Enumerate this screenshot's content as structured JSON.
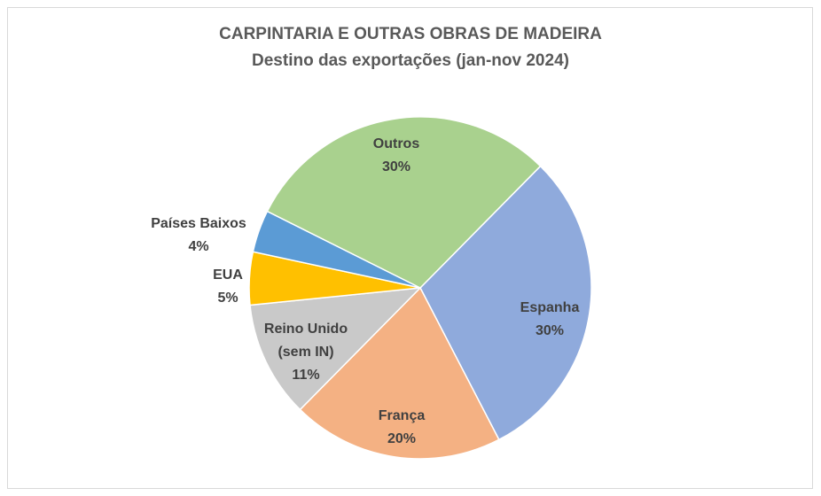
{
  "chart_data": {
    "type": "pie",
    "title": "CARPINTARIA E OUTRAS OBRAS DE MADEIRA",
    "subtitle": "Destino das exportações (jan-nov 2024)",
    "categories": [
      "Espanha",
      "França",
      "Reino Unido (sem IN)",
      "EUA",
      "Países Baixos",
      "Outros"
    ],
    "values": [
      30,
      20,
      11,
      5,
      4,
      30
    ],
    "value_labels": [
      "30%",
      "20%",
      "11%",
      "5%",
      "4%",
      "30%"
    ],
    "colors": [
      "#8faadc",
      "#f4b183",
      "#c9c9c9",
      "#ffc000",
      "#5b9bd5",
      "#a9d18e"
    ]
  }
}
